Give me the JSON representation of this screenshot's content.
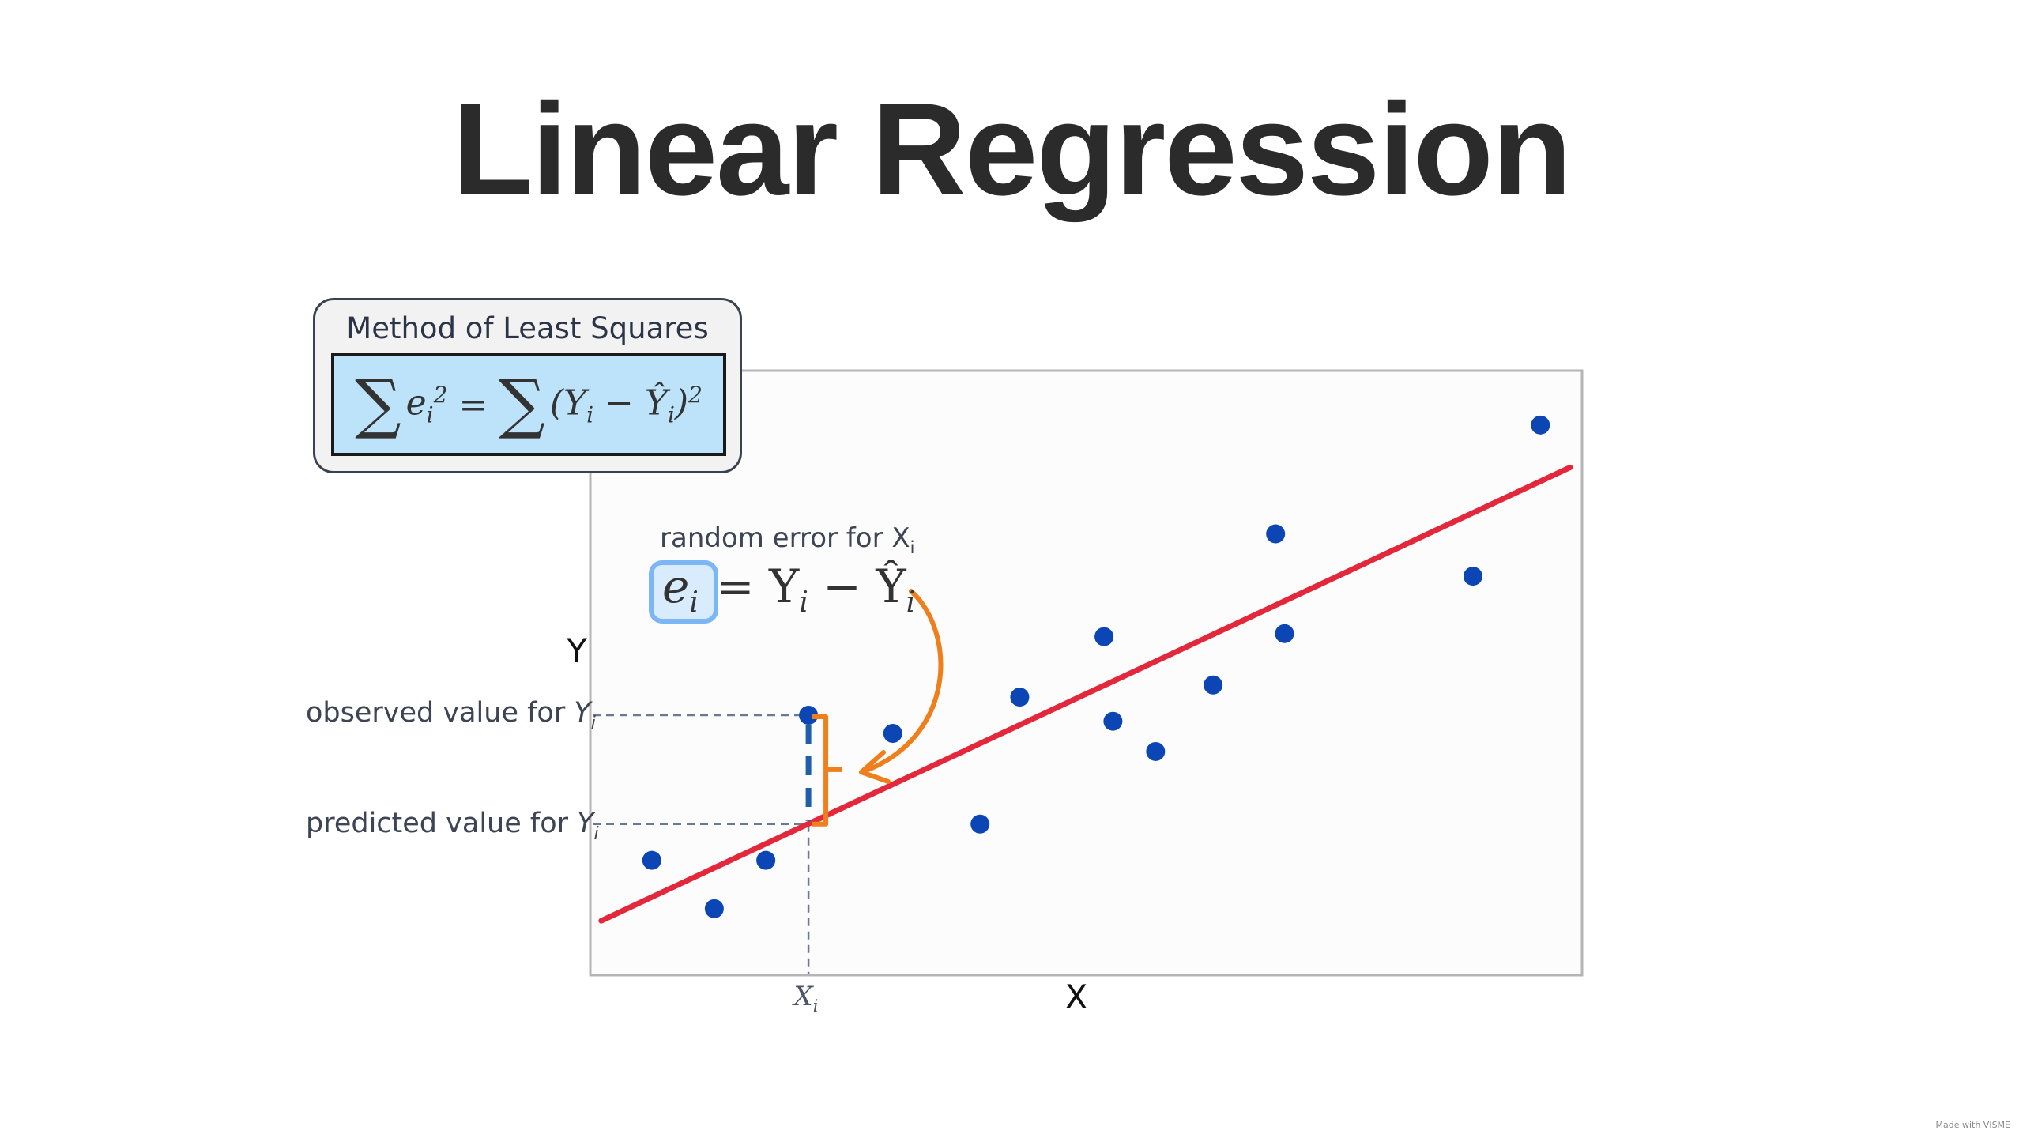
{
  "title": "Linear Regression",
  "least_squares": {
    "heading": "Method of Least Squares",
    "formula_lhs": "e",
    "formula_rhs": "(Y − Ŷ)"
  },
  "annotations": {
    "random_error": "random error for X",
    "random_error_sub": "i",
    "error_eq_e": "e",
    "error_eq_sub": "i",
    "error_eq_rest": "= Y",
    "error_eq_minus": "− Ŷ",
    "observed": "observed value for ",
    "predicted": "predicted value for ",
    "y_sym": "Y",
    "sub_i": "i",
    "xi": "X"
  },
  "chart_data": {
    "type": "scatter",
    "xlabel": "X",
    "ylabel": "Y",
    "xlim": [
      0,
      100
    ],
    "ylim": [
      0,
      100
    ],
    "points": [
      [
        6.2,
        19.0
      ],
      [
        12.5,
        11.0
      ],
      [
        17.7,
        19.0
      ],
      [
        22.0,
        43.0
      ],
      [
        30.5,
        40.0
      ],
      [
        39.3,
        25.0
      ],
      [
        43.3,
        46.0
      ],
      [
        51.8,
        56.0
      ],
      [
        52.7,
        42.0
      ],
      [
        57.0,
        37.0
      ],
      [
        62.8,
        48.0
      ],
      [
        69.1,
        73.0
      ],
      [
        70.0,
        56.5
      ],
      [
        89.0,
        66.0
      ],
      [
        95.8,
        91.0
      ]
    ],
    "regression_line": {
      "x": [
        1.1,
        98.8
      ],
      "y": [
        9.0,
        84.0
      ]
    },
    "highlight": {
      "x": 22.0,
      "observed": 43.0,
      "predicted": 25.0
    },
    "colors": {
      "points": "#0b46b4",
      "line": "#e4283c",
      "error_bracket": "#ef7e1c",
      "residual": "#1f5ea8"
    }
  },
  "footer": "Made with VISME"
}
